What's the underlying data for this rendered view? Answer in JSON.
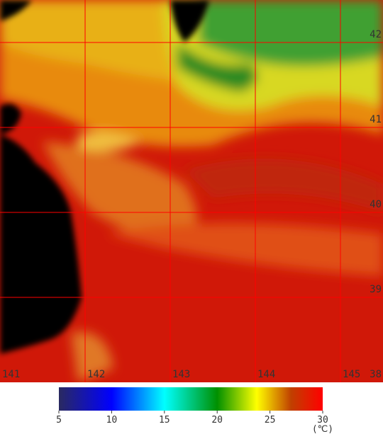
{
  "longitude_labels": [
    141,
    142,
    143,
    144,
    145
  ],
  "latitude_labels": [
    42,
    41,
    40,
    39,
    38
  ],
  "colorbar": {
    "range": [
      5,
      30
    ],
    "ticks": [
      5,
      10,
      15,
      20,
      25,
      30
    ],
    "unit": "(℃)"
  }
}
